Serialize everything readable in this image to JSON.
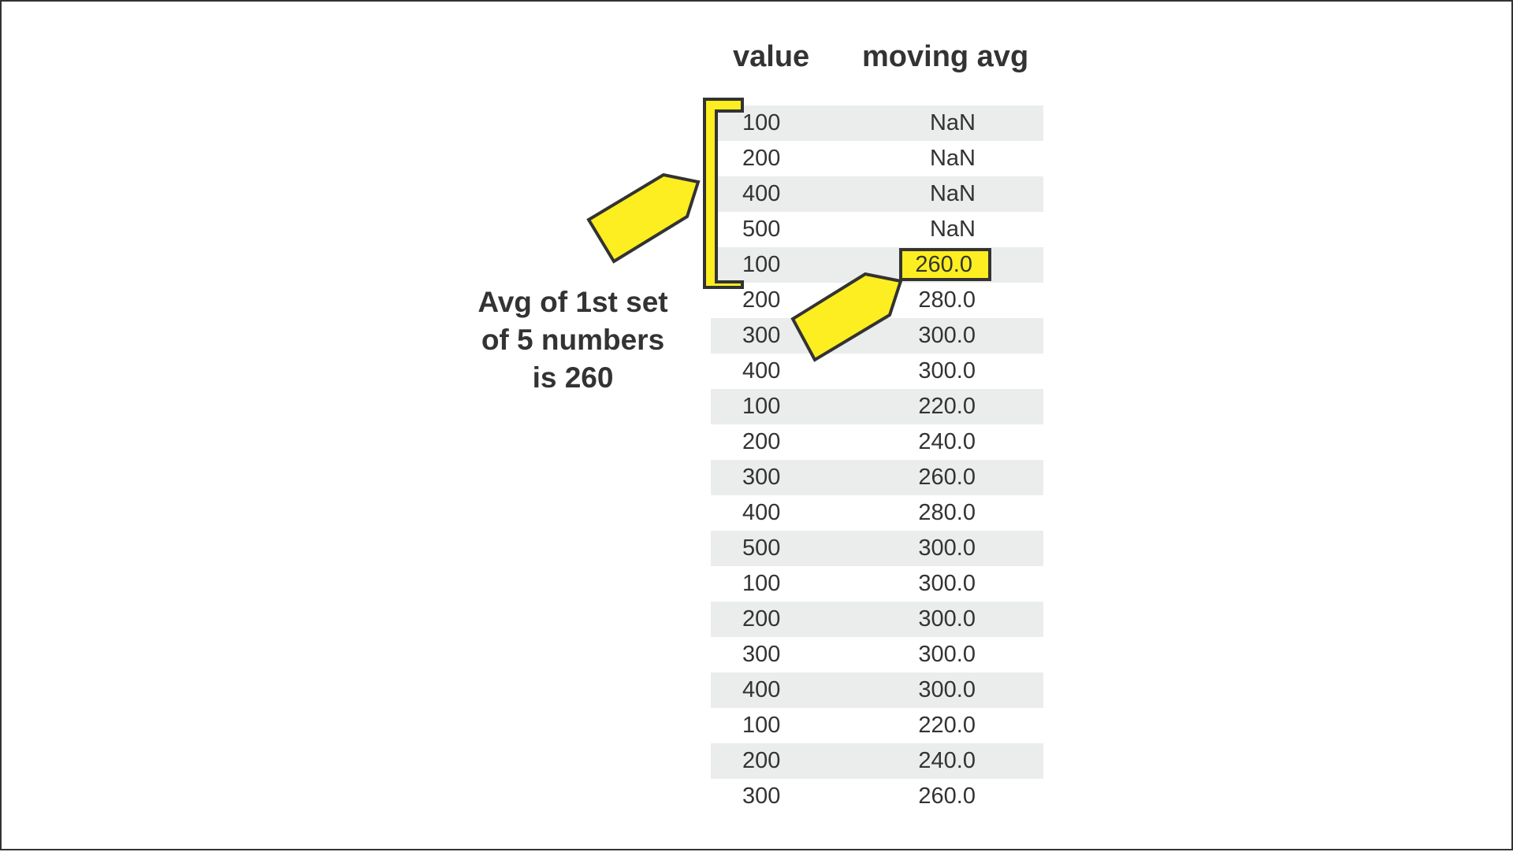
{
  "headers": {
    "value": "value",
    "moving_avg": "moving avg"
  },
  "rows": [
    {
      "value": "100",
      "moving_avg": "NaN"
    },
    {
      "value": "200",
      "moving_avg": "NaN"
    },
    {
      "value": "400",
      "moving_avg": "NaN"
    },
    {
      "value": "500",
      "moving_avg": "NaN"
    },
    {
      "value": "100",
      "moving_avg": "260.0"
    },
    {
      "value": "200",
      "moving_avg": "280.0"
    },
    {
      "value": "300",
      "moving_avg": "300.0"
    },
    {
      "value": "400",
      "moving_avg": "300.0"
    },
    {
      "value": "100",
      "moving_avg": "220.0"
    },
    {
      "value": "200",
      "moving_avg": "240.0"
    },
    {
      "value": "300",
      "moving_avg": "260.0"
    },
    {
      "value": "400",
      "moving_avg": "280.0"
    },
    {
      "value": "500",
      "moving_avg": "300.0"
    },
    {
      "value": "100",
      "moving_avg": "300.0"
    },
    {
      "value": "200",
      "moving_avg": "300.0"
    },
    {
      "value": "300",
      "moving_avg": "300.0"
    },
    {
      "value": "400",
      "moving_avg": "300.0"
    },
    {
      "value": "100",
      "moving_avg": "220.0"
    },
    {
      "value": "200",
      "moving_avg": "240.0"
    },
    {
      "value": "300",
      "moving_avg": "260.0"
    }
  ],
  "highlight": {
    "value": "260.0"
  },
  "annotation": {
    "lines": [
      "Avg of 1st set",
      "of 5 numbers",
      "is 260"
    ]
  },
  "colors": {
    "accent": "#fcee21",
    "text": "#333333",
    "stripe": "#ebecec",
    "border": "#333333"
  }
}
